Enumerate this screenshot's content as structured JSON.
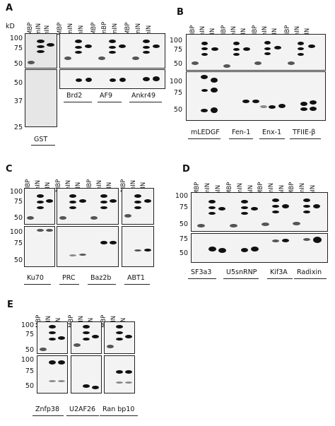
{
  "panels": {
    "A": {
      "label": "A",
      "kd_label": "kD",
      "mw_top": [
        "100",
        "75",
        "50"
      ],
      "mw_bottom": [
        "50",
        "37",
        "25"
      ],
      "lanes": [
        "MBP",
        "mIN",
        "hIN"
      ],
      "lanes_b": [
        "MBP",
        "mIN",
        "hIN",
        "MBP",
        "mBP",
        "mIN",
        "hIN"
      ],
      "names": [
        "GST",
        "Brd2",
        "AF9",
        "Ankr49"
      ]
    },
    "B": {
      "label": "B",
      "mw_top": [
        "100",
        "75",
        "50"
      ],
      "mw_bottom": [
        "100",
        "75",
        "50"
      ],
      "lanes": [
        "MBP",
        "mIN",
        "hIN",
        "MBP",
        "mIN",
        "hIN",
        "MBP",
        "mIN",
        "hIN",
        "MBP",
        "mIN",
        "hIN"
      ],
      "names": [
        "mLEDGF",
        "Fen-1",
        "Enx-1",
        "TFIIE-β"
      ]
    },
    "C": {
      "label": "C",
      "mw_top": [
        "100",
        "75",
        "50"
      ],
      "mw_bottom": [
        "100",
        "75",
        "50"
      ],
      "lanes": [
        "MBP",
        "mIN",
        "hIN",
        "MBP",
        "mIN",
        "hIN",
        "MBP",
        "mIN",
        "hIN"
      ],
      "names": [
        "Ku70",
        "PRC",
        "Baz2b",
        "ABT1"
      ]
    },
    "D": {
      "label": "D",
      "mw_top": [
        "100",
        "75",
        "50"
      ],
      "mw_bottom": [
        "75",
        "50"
      ],
      "lanes": [
        "MBP",
        "mIN",
        "hIN",
        "MBP",
        "mIN",
        "hIN",
        "MBP",
        "mIN",
        "hIN",
        "MBP",
        "mIN",
        "hIN"
      ],
      "names": [
        "SF3a3",
        "U5snRNP",
        "Kif3A",
        "Radixin"
      ]
    },
    "E": {
      "label": "E",
      "mw_top": [
        "100",
        "75",
        "50"
      ],
      "mw_bottom": [
        "100",
        "75",
        "50"
      ],
      "lanes": [
        "MBP",
        "mIN",
        "hIN",
        "MBP",
        "mIN",
        "hIN",
        "MBP",
        "mIN",
        "hIN"
      ],
      "names": [
        "Znfp38",
        "U2AF26",
        "Ran bp10"
      ]
    }
  }
}
